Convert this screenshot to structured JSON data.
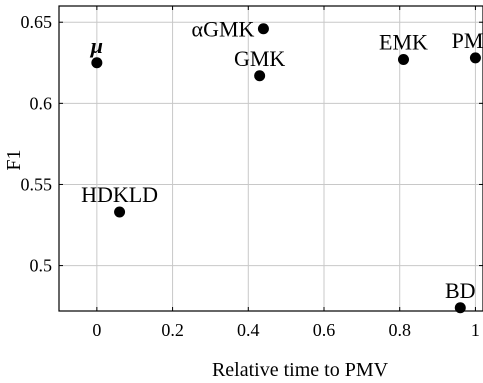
{
  "chart_data": {
    "type": "scatter",
    "title": "",
    "xlabel": "Relative time to PMV",
    "ylabel": "F1",
    "xlim": [
      -0.1,
      1.02
    ],
    "ylim": [
      0.472,
      0.66
    ],
    "xticks": [
      0,
      0.2,
      0.4,
      0.6,
      0.8,
      1
    ],
    "xtick_labels": [
      "0",
      "0.2",
      "0.4",
      "0.6",
      "0.8",
      "1"
    ],
    "yticks": [
      0.5,
      0.55,
      0.6,
      0.65
    ],
    "ytick_labels": [
      "0.5",
      "0.55",
      "0.6",
      "0.65"
    ],
    "grid": true,
    "legend": "none",
    "point_color": "#000000",
    "points": [
      {
        "label": "μ",
        "x": 0.0,
        "y": 0.625,
        "label_anchor": "above"
      },
      {
        "label": "αGMK",
        "x": 0.44,
        "y": 0.646,
        "label_anchor": "left"
      },
      {
        "label": "GMK",
        "x": 0.43,
        "y": 0.617,
        "label_anchor": "above"
      },
      {
        "label": "EMK",
        "x": 0.81,
        "y": 0.627,
        "label_anchor": "above"
      },
      {
        "label": "PMV",
        "x": 1.0,
        "y": 0.628,
        "label_anchor": "above"
      },
      {
        "label": "HDKLD",
        "x": 0.06,
        "y": 0.533,
        "label_anchor": "above"
      },
      {
        "label": "BD",
        "x": 0.96,
        "y": 0.474,
        "label_anchor": "above"
      }
    ]
  }
}
